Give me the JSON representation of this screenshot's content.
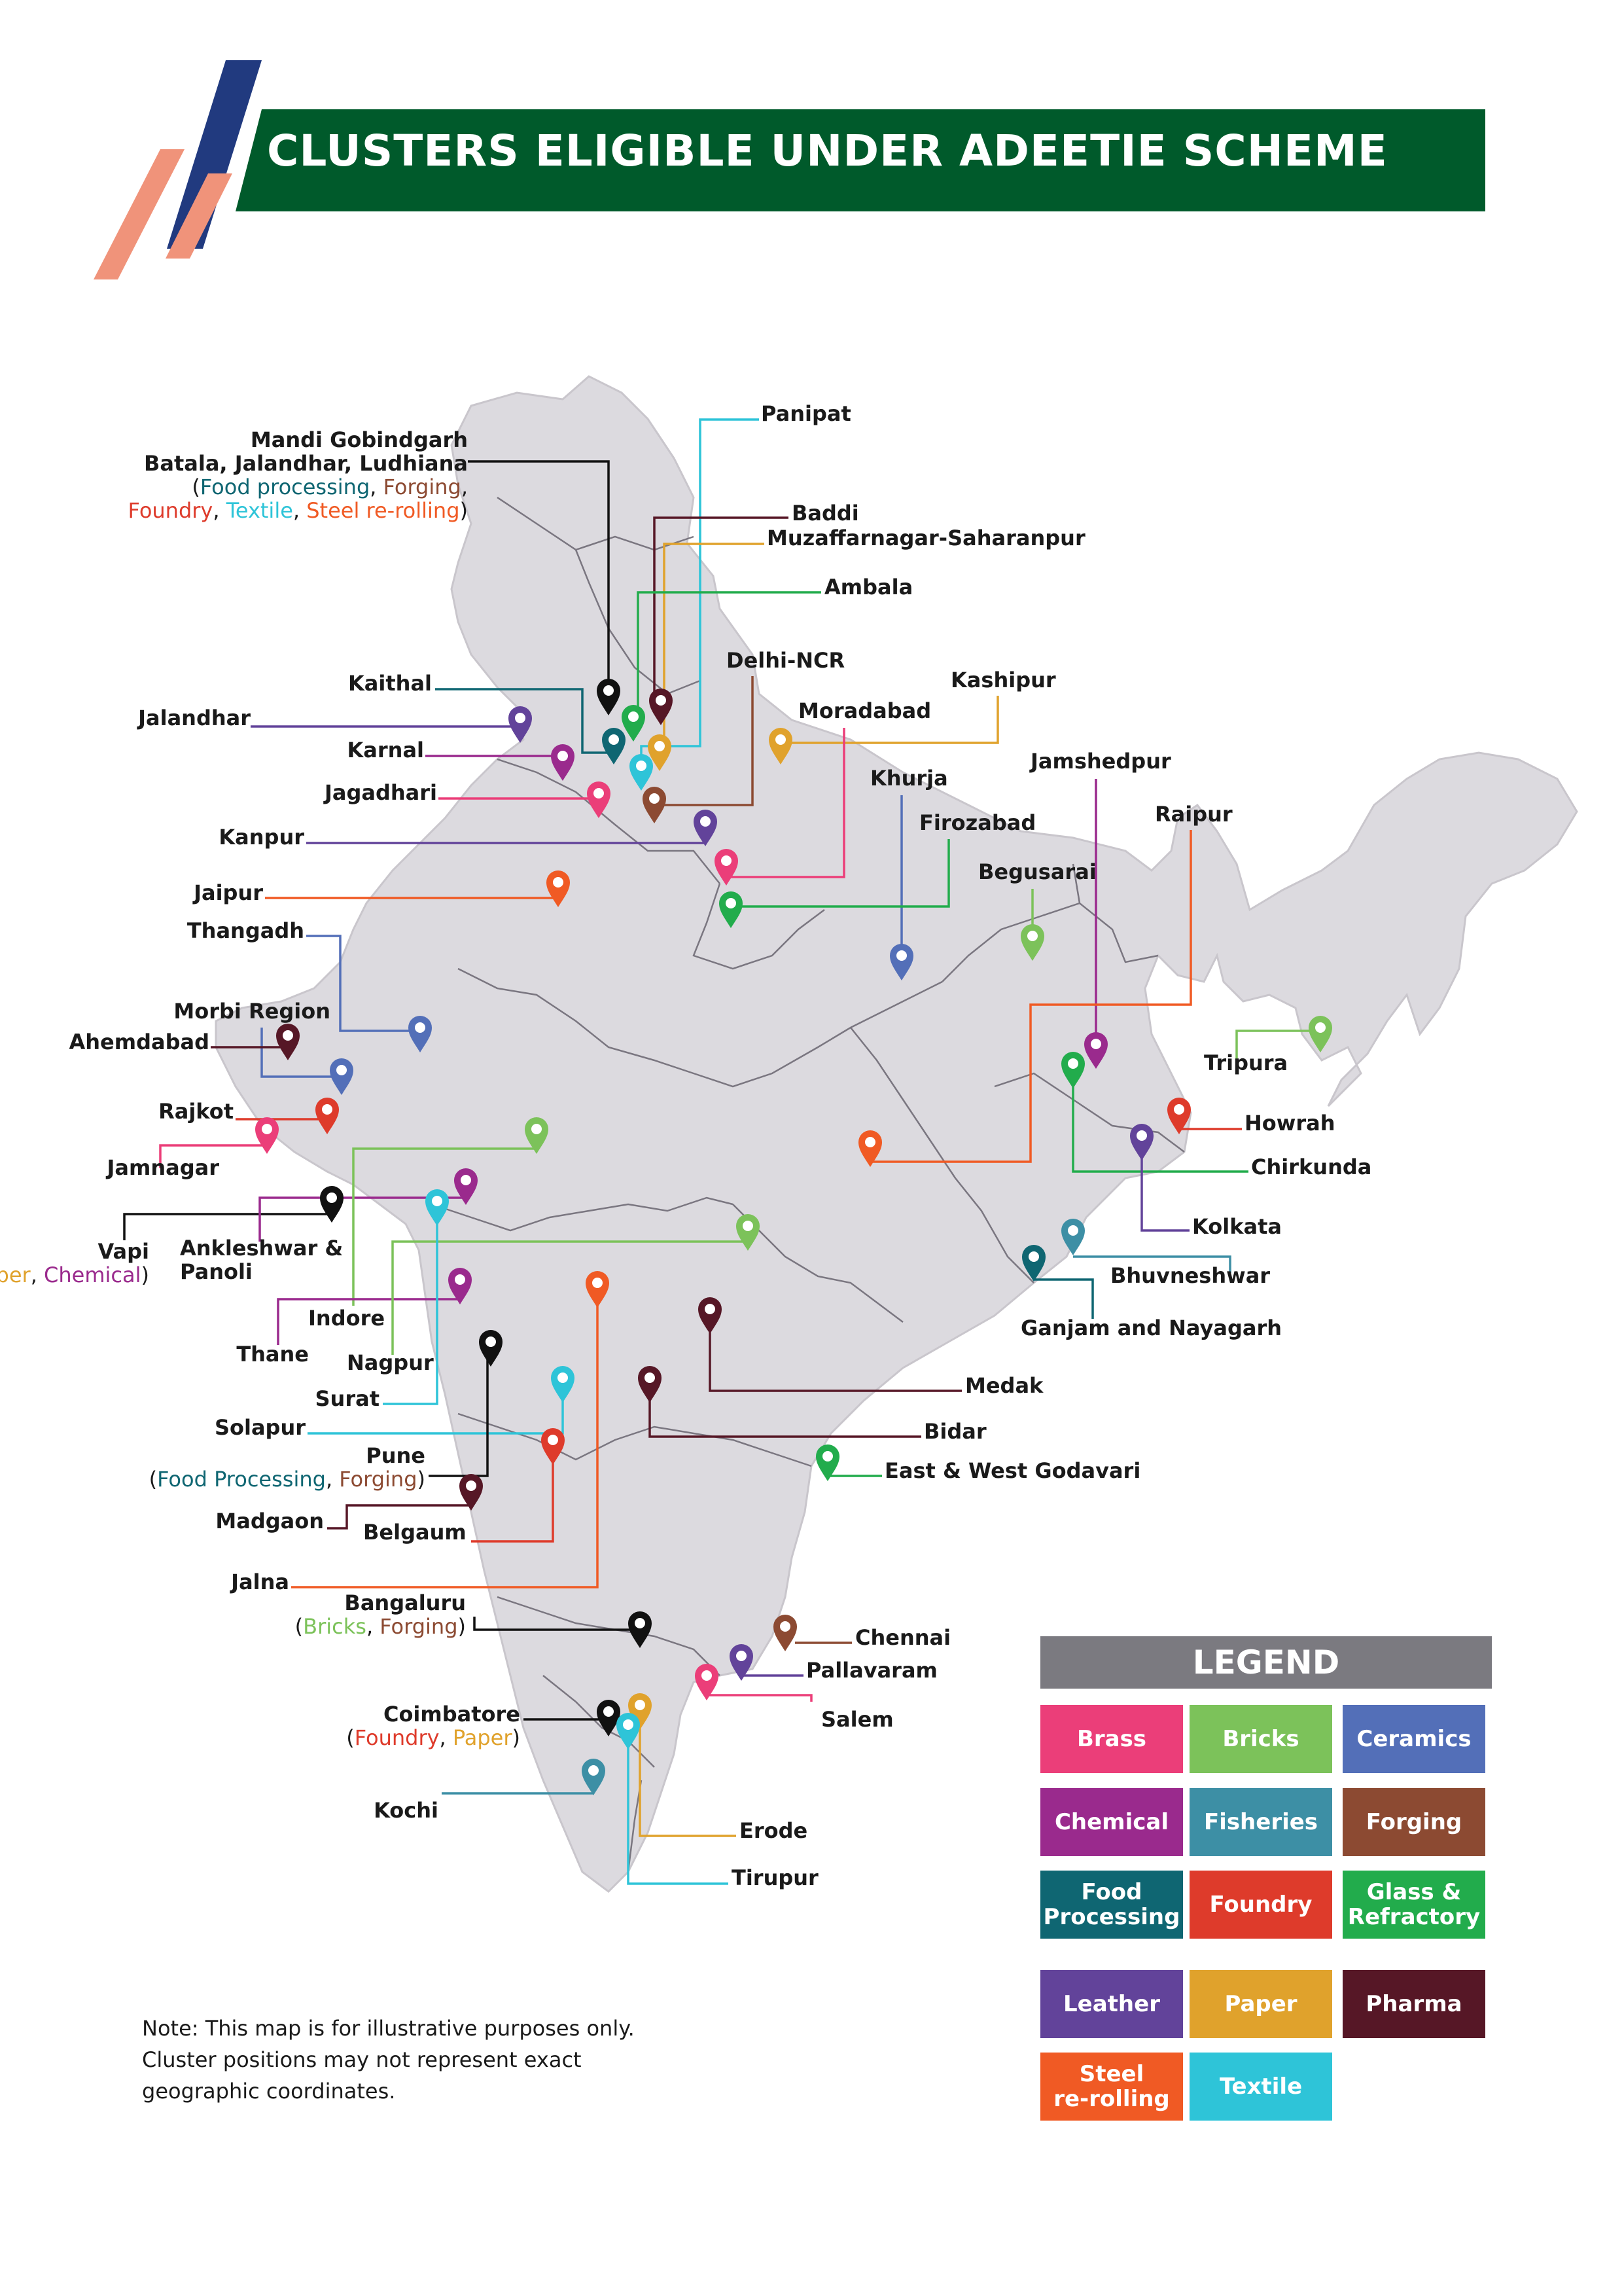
{
  "title": "CLUSTERS ELIGIBLE UNDER ADEETIE SCHEME",
  "colors": {
    "banner": "#005a2b",
    "stripe_navy": "#213a7f",
    "stripe_salmon": "#f0937a",
    "map_fill": "#dcdadf",
    "map_border": "#7a7680"
  },
  "legend": {
    "title": "LEGEND",
    "items": [
      {
        "label": "Brass",
        "color": "#eb3e79"
      },
      {
        "label": "Bricks",
        "color": "#7cc25a"
      },
      {
        "label": "Ceramics",
        "color": "#536fb8"
      },
      {
        "label": "Chemical",
        "color": "#9a2a8d"
      },
      {
        "label": "Fisheries",
        "color": "#3d8fa5"
      },
      {
        "label": "Forging",
        "color": "#8c4a32"
      },
      {
        "label": "Food\nProcessing",
        "color": "#0f6672"
      },
      {
        "label": "Foundry",
        "color": "#de3b2b"
      },
      {
        "label": "Glass &\nRefractory",
        "color": "#22ac4c"
      },
      {
        "label": "Leather",
        "color": "#62439a"
      },
      {
        "label": "Paper",
        "color": "#e0a22c"
      },
      {
        "label": "Pharma",
        "color": "#561726"
      },
      {
        "label": "Steel\nre-rolling",
        "color": "#f05a24"
      },
      {
        "label": "Textile",
        "color": "#2ec4d8"
      }
    ]
  },
  "note": "Note: This map is for illustrative purposes only.\nCluster positions may not represent exact\ngeographic coordinates.",
  "clusters": [
    {
      "id": "mandi",
      "lines": [
        "Mandi Gobindgarh",
        "Batala, Jalandhar, Ludhiana"
      ],
      "sub": [
        [
          "(",
          ""
        ],
        [
          "Food processing",
          "#0f6672"
        ],
        [
          ", ",
          ""
        ],
        [
          "Forging",
          "#8c4a32"
        ],
        [
          ",",
          ""
        ]
      ],
      "sub2": [
        [
          "Foundry",
          "#de3b2b"
        ],
        [
          ", ",
          ""
        ],
        [
          "Textile",
          "#2ec4d8"
        ],
        [
          ", ",
          ""
        ],
        [
          "Steel re-rolling",
          "#f05a24"
        ],
        [
          ")",
          ""
        ]
      ],
      "color": "#111111"
    },
    {
      "id": "panipat",
      "lines": [
        "Panipat"
      ],
      "color": "#2ec4d8"
    },
    {
      "id": "baddi",
      "lines": [
        "Baddi"
      ],
      "color": "#561726"
    },
    {
      "id": "muzaffarnagar",
      "lines": [
        "Muzaffarnagar-Saharanpur"
      ],
      "color": "#e0a22c"
    },
    {
      "id": "ambala",
      "lines": [
        "Ambala"
      ],
      "color": "#22ac4c"
    },
    {
      "id": "delhi",
      "lines": [
        "Delhi-NCR"
      ],
      "color": "#8c4a32"
    },
    {
      "id": "kaithal",
      "lines": [
        "Kaithal"
      ],
      "color": "#0f6672"
    },
    {
      "id": "kashipur",
      "lines": [
        "Kashipur"
      ],
      "color": "#e0a22c"
    },
    {
      "id": "jalandhar",
      "lines": [
        "Jalandhar"
      ],
      "color": "#62439a"
    },
    {
      "id": "moradabad",
      "lines": [
        "Moradabad"
      ],
      "color": "#eb3e79"
    },
    {
      "id": "karnal",
      "lines": [
        "Karnal"
      ],
      "color": "#9a2a8d"
    },
    {
      "id": "jamshedpur",
      "lines": [
        "Jamshedpur"
      ],
      "color": "#9a2a8d"
    },
    {
      "id": "khurja",
      "lines": [
        "Khurja"
      ],
      "color": "#536fb8"
    },
    {
      "id": "jagadhari",
      "lines": [
        "Jagadhari"
      ],
      "color": "#eb3e79"
    },
    {
      "id": "raipur",
      "lines": [
        "Raipur"
      ],
      "color": "#f05a24"
    },
    {
      "id": "firozabad",
      "lines": [
        "Firozabad"
      ],
      "color": "#22ac4c"
    },
    {
      "id": "kanpur",
      "lines": [
        "Kanpur"
      ],
      "color": "#62439a"
    },
    {
      "id": "begusarai",
      "lines": [
        "Begusarai"
      ],
      "color": "#7cc25a"
    },
    {
      "id": "jaipur",
      "lines": [
        "Jaipur"
      ],
      "color": "#f05a24"
    },
    {
      "id": "thangadh",
      "lines": [
        "Thangadh"
      ],
      "color": "#536fb8"
    },
    {
      "id": "morbi",
      "lines": [
        "Morbi Region"
      ],
      "color": "#536fb8"
    },
    {
      "id": "ahemdabad",
      "lines": [
        "Ahemdabad"
      ],
      "color": "#561726"
    },
    {
      "id": "tripura",
      "lines": [
        "Tripura"
      ],
      "color": "#7cc25a"
    },
    {
      "id": "rajkot",
      "lines": [
        "Rajkot"
      ],
      "color": "#de3b2b"
    },
    {
      "id": "howrah",
      "lines": [
        "Howrah"
      ],
      "color": "#de3b2b"
    },
    {
      "id": "jamnagar",
      "lines": [
        "Jamnagar"
      ],
      "color": "#eb3e79"
    },
    {
      "id": "chirkunda",
      "lines": [
        "Chirkunda"
      ],
      "color": "#22ac4c"
    },
    {
      "id": "kolkata",
      "lines": [
        "Kolkata"
      ],
      "color": "#62439a"
    },
    {
      "id": "vapi",
      "lines": [
        "Vapi"
      ],
      "sub": [
        [
          "(",
          ""
        ],
        [
          "Paper",
          "#e0a22c"
        ],
        [
          ", ",
          ""
        ],
        [
          "Chemical",
          "#9a2a8d"
        ],
        [
          ")",
          ""
        ]
      ],
      "color": "#111111"
    },
    {
      "id": "ankleshwar",
      "lines": [
        "Ankleshwar &",
        "Panoli"
      ],
      "color": "#9a2a8d"
    },
    {
      "id": "bhuvneshwar",
      "lines": [
        "Bhuvneshwar"
      ],
      "color": "#3d8fa5"
    },
    {
      "id": "indore",
      "lines": [
        "Indore"
      ],
      "color": "#7cc25a"
    },
    {
      "id": "ganjam",
      "lines": [
        "Ganjam and Nayagarh"
      ],
      "color": "#0f6672"
    },
    {
      "id": "thane",
      "lines": [
        "Thane"
      ],
      "color": "#9a2a8d"
    },
    {
      "id": "nagpur",
      "lines": [
        "Nagpur"
      ],
      "color": "#7cc25a"
    },
    {
      "id": "medak",
      "lines": [
        "Medak"
      ],
      "color": "#561726"
    },
    {
      "id": "surat",
      "lines": [
        "Surat"
      ],
      "color": "#2ec4d8"
    },
    {
      "id": "solapur",
      "lines": [
        "Solapur"
      ],
      "color": "#2ec4d8"
    },
    {
      "id": "bidar",
      "lines": [
        "Bidar"
      ],
      "color": "#561726"
    },
    {
      "id": "godavari",
      "lines": [
        "East & West Godavari"
      ],
      "color": "#22ac4c"
    },
    {
      "id": "pune",
      "lines": [
        "Pune"
      ],
      "sub": [
        [
          "(",
          ""
        ],
        [
          "Food Processing",
          "#0f6672"
        ],
        [
          ", ",
          ""
        ],
        [
          "Forging",
          "#8c4a32"
        ],
        [
          ")",
          ""
        ]
      ],
      "color": "#111111"
    },
    {
      "id": "madgaon",
      "lines": [
        "Madgaon"
      ],
      "color": "#561726"
    },
    {
      "id": "belgaum",
      "lines": [
        "Belgaum"
      ],
      "color": "#de3b2b"
    },
    {
      "id": "jalna",
      "lines": [
        "Jalna"
      ],
      "color": "#f05a24"
    },
    {
      "id": "bangaluru",
      "lines": [
        "Bangaluru"
      ],
      "sub": [
        [
          "(",
          ""
        ],
        [
          "Bricks",
          "#7cc25a"
        ],
        [
          ", ",
          ""
        ],
        [
          "Forging",
          "#8c4a32"
        ],
        [
          ")",
          ""
        ]
      ],
      "color": "#111111"
    },
    {
      "id": "chennai",
      "lines": [
        "Chennai"
      ],
      "color": "#8c4a32"
    },
    {
      "id": "pallavaram",
      "lines": [
        "Pallavaram"
      ],
      "color": "#62439a"
    },
    {
      "id": "salem",
      "lines": [
        "Salem"
      ],
      "color": "#eb3e79"
    },
    {
      "id": "coimbatore",
      "lines": [
        "Coimbatore"
      ],
      "sub": [
        [
          "(",
          ""
        ],
        [
          "Foundry",
          "#de3b2b"
        ],
        [
          ", ",
          ""
        ],
        [
          "Paper",
          "#e0a22c"
        ],
        [
          ")",
          ""
        ]
      ],
      "color": "#111111"
    },
    {
      "id": "kochi",
      "lines": [
        "Kochi"
      ],
      "color": "#3d8fa5"
    },
    {
      "id": "erode",
      "lines": [
        "Erode"
      ],
      "color": "#e0a22c"
    },
    {
      "id": "tirupur",
      "lines": [
        "Tirupur"
      ],
      "color": "#2ec4d8"
    }
  ]
}
